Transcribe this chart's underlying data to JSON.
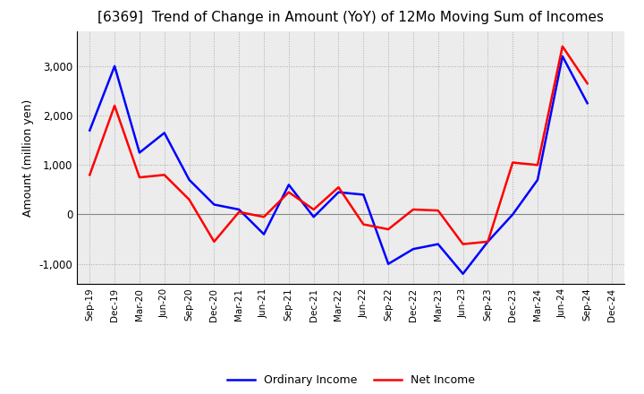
{
  "title": "[6369]  Trend of Change in Amount (YoY) of 12Mo Moving Sum of Incomes",
  "ylabel": "Amount (million yen)",
  "x_labels": [
    "Sep-19",
    "Dec-19",
    "Mar-20",
    "Jun-20",
    "Sep-20",
    "Dec-20",
    "Mar-21",
    "Jun-21",
    "Sep-21",
    "Dec-21",
    "Mar-22",
    "Jun-22",
    "Sep-22",
    "Dec-22",
    "Mar-23",
    "Jun-23",
    "Sep-23",
    "Dec-23",
    "Mar-24",
    "Jun-24",
    "Sep-24",
    "Dec-24"
  ],
  "ordinary_income": [
    1700,
    3000,
    1250,
    1650,
    700,
    200,
    100,
    -400,
    600,
    -50,
    450,
    400,
    -1000,
    -700,
    -600,
    -1200,
    -550,
    0,
    700,
    3200,
    2250,
    null
  ],
  "net_income": [
    800,
    2200,
    750,
    800,
    300,
    -550,
    50,
    -50,
    450,
    100,
    550,
    -200,
    -300,
    100,
    80,
    -600,
    -550,
    1050,
    1000,
    3400,
    2650,
    null
  ],
  "ylim": [
    -1400,
    3700
  ],
  "yticks": [
    -1000,
    0,
    1000,
    2000,
    3000
  ],
  "ordinary_color": "#0000FF",
  "net_color": "#FF0000",
  "background_color": "#FFFFFF",
  "grid_color": "#AAAAAA",
  "line_width": 1.8
}
